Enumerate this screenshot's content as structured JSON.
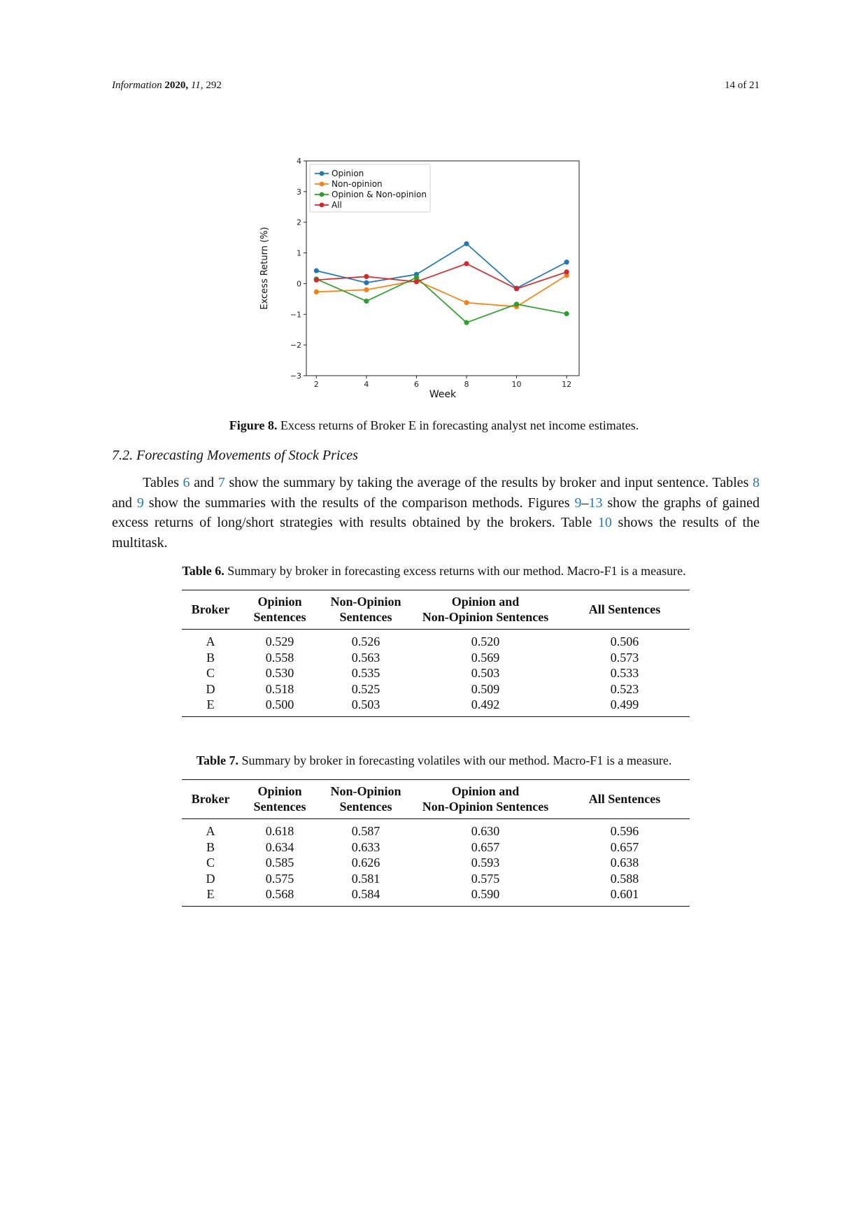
{
  "header": {
    "journal": "Information",
    "year": "2020,",
    "volume": "11,",
    "page_id": "292",
    "page_label": "14 of 21"
  },
  "figure": {
    "label": "Figure 8.",
    "caption": "Excess returns of Broker E in forecasting analyst net income estimates."
  },
  "chart_data": {
    "type": "line",
    "x": [
      2,
      4,
      6,
      8,
      10,
      12
    ],
    "xticks": [
      "2",
      "4",
      "6",
      "8",
      "10",
      "12"
    ],
    "yticks": [
      "−3",
      "−2",
      "−1",
      "0",
      "1",
      "2",
      "3",
      "4"
    ],
    "xlabel": "Week",
    "ylabel": "Excess Return (%)",
    "xlim": [
      1.6,
      12.5
    ],
    "ylim": [
      -3,
      4
    ],
    "legend_position": "upper-left",
    "series": [
      {
        "name": "Opinion",
        "color": "#1f77b4",
        "values": [
          0.42,
          0.03,
          0.3,
          1.3,
          -0.15,
          0.7
        ]
      },
      {
        "name": "Non-opinion",
        "color": "#ff7f0e",
        "values": [
          -0.27,
          -0.2,
          0.1,
          -0.62,
          -0.75,
          0.27
        ]
      },
      {
        "name": "Opinion & Non-opinion",
        "color": "#2ca02c",
        "values": [
          0.15,
          -0.57,
          0.2,
          -1.27,
          -0.67,
          -0.98
        ]
      },
      {
        "name": "All",
        "color": "#d62728",
        "values": [
          0.12,
          0.23,
          0.06,
          0.65,
          -0.17,
          0.38
        ]
      }
    ]
  },
  "section": {
    "title": "7.2. Forecasting Movements of Stock Prices"
  },
  "paragraph": {
    "t1": "Tables ",
    "r6": "6",
    "t2": " and ",
    "r7": "7",
    "t3": " show the summary by taking the average of the results by broker and input sentence. Tables ",
    "r8": "8",
    "t4": " and ",
    "r9": "9",
    "t5": " show the summaries with the results of the comparison methods. Figures ",
    "r9b": "9",
    "dash": "–",
    "r13": "13",
    "t6": " show the graphs of gained excess returns of long/short strategies with results obtained by the brokers. Table ",
    "r10": "10",
    "t7": " shows the results of the multitask."
  },
  "table6": {
    "label": "Table 6.",
    "caption": "Summary by broker in forecasting excess returns with our method. Macro-F1 is a measure.",
    "headers": [
      {
        "l1": "Broker",
        "l2": ""
      },
      {
        "l1": "Opinion",
        "l2": "Sentences"
      },
      {
        "l1": "Non-Opinion",
        "l2": "Sentences"
      },
      {
        "l1": "Opinion and",
        "l2": "Non-Opinion Sentences"
      },
      {
        "l1": "All Sentences",
        "l2": ""
      }
    ],
    "rows": [
      [
        "A",
        "0.529",
        "0.526",
        "0.520",
        "0.506"
      ],
      [
        "B",
        "0.558",
        "0.563",
        "0.569",
        "0.573"
      ],
      [
        "C",
        "0.530",
        "0.535",
        "0.503",
        "0.533"
      ],
      [
        "D",
        "0.518",
        "0.525",
        "0.509",
        "0.523"
      ],
      [
        "E",
        "0.500",
        "0.503",
        "0.492",
        "0.499"
      ]
    ]
  },
  "table7": {
    "label": "Table 7.",
    "caption": "Summary by broker in forecasting volatiles with our method. Macro-F1 is a measure.",
    "headers": [
      {
        "l1": "Broker",
        "l2": ""
      },
      {
        "l1": "Opinion",
        "l2": "Sentences"
      },
      {
        "l1": "Non-Opinion",
        "l2": "Sentences"
      },
      {
        "l1": "Opinion and",
        "l2": "Non-Opinion Sentences"
      },
      {
        "l1": "All Sentences",
        "l2": ""
      }
    ],
    "rows": [
      [
        "A",
        "0.618",
        "0.587",
        "0.630",
        "0.596"
      ],
      [
        "B",
        "0.634",
        "0.633",
        "0.657",
        "0.657"
      ],
      [
        "C",
        "0.585",
        "0.626",
        "0.593",
        "0.638"
      ],
      [
        "D",
        "0.575",
        "0.581",
        "0.575",
        "0.588"
      ],
      [
        "E",
        "0.568",
        "0.584",
        "0.590",
        "0.601"
      ]
    ]
  }
}
